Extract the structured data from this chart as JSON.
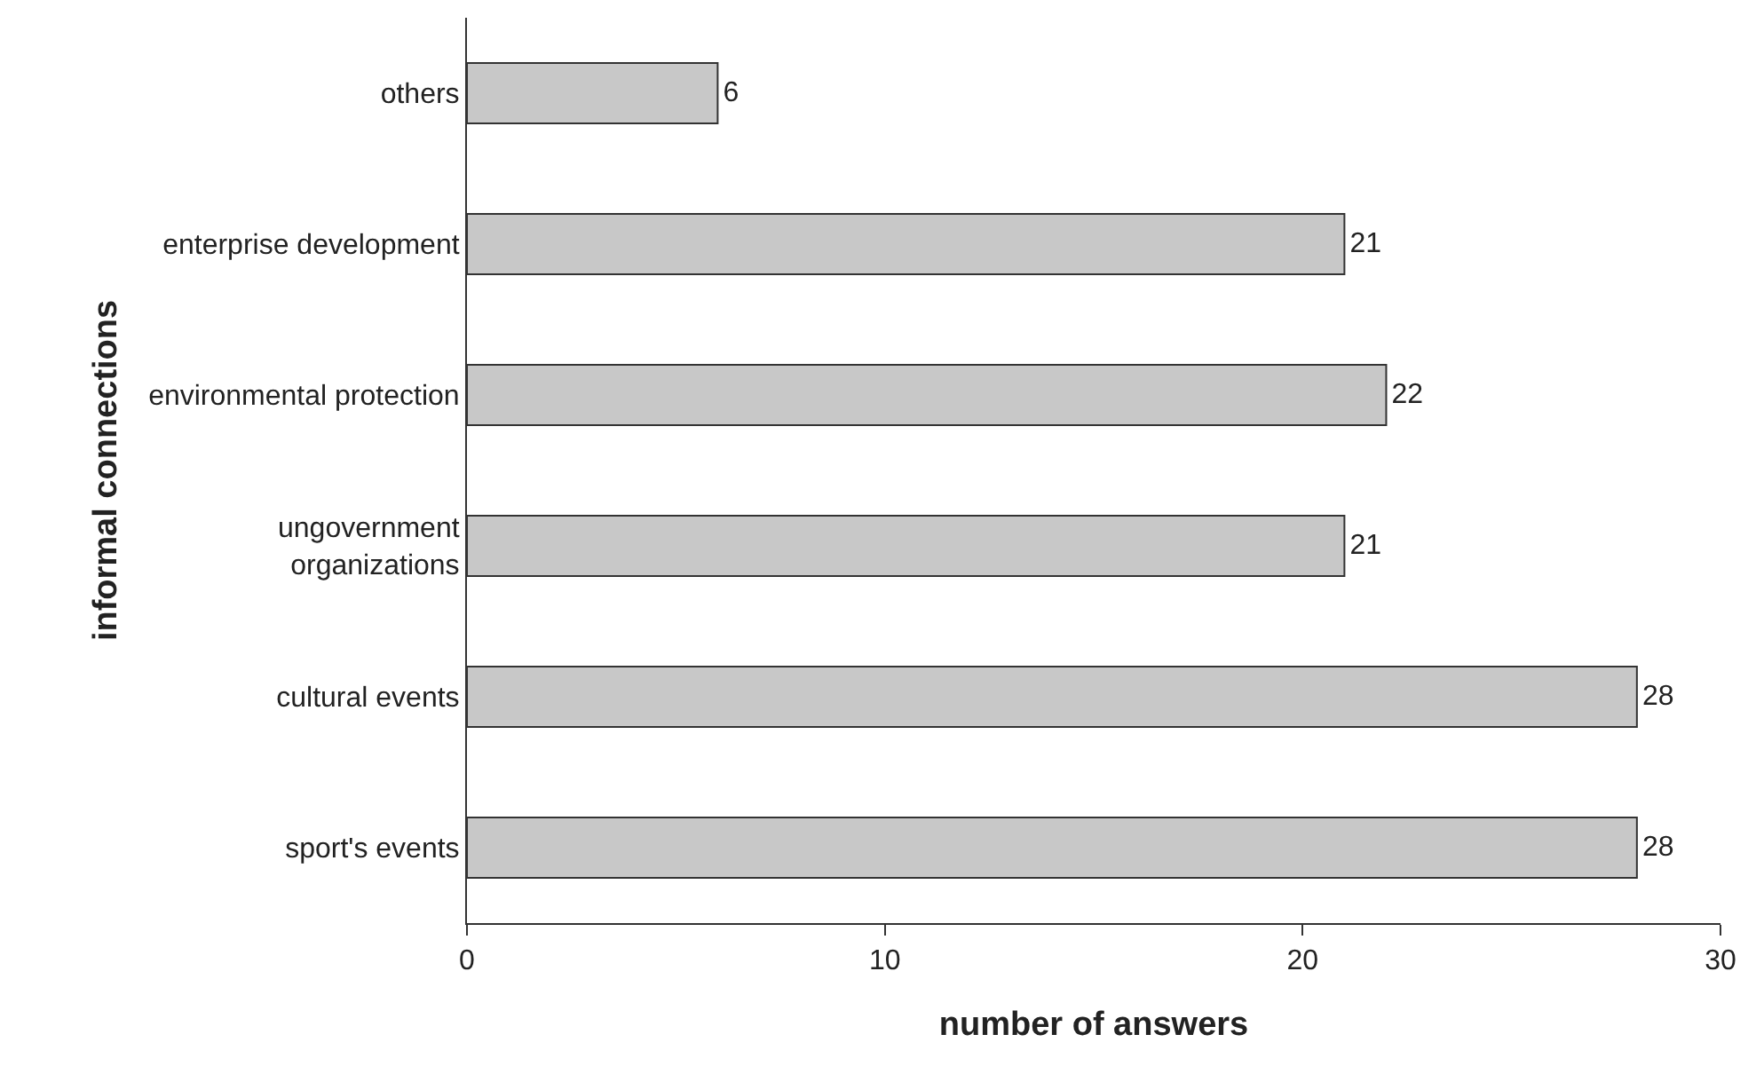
{
  "chart_data": {
    "type": "bar",
    "orientation": "horizontal",
    "categories": [
      "others",
      "enterprise development",
      "environmental protection",
      "ungovernment\norganizations",
      "cultural events",
      "sport's events"
    ],
    "values": [
      6,
      21,
      22,
      21,
      28,
      28
    ],
    "color": "#c8c8c8",
    "xlabel": "number of answers",
    "ylabel": "informal connections",
    "xlim": [
      0,
      30
    ],
    "xticks": [
      0,
      10,
      20,
      30
    ],
    "legend": false,
    "data_labels": true
  }
}
